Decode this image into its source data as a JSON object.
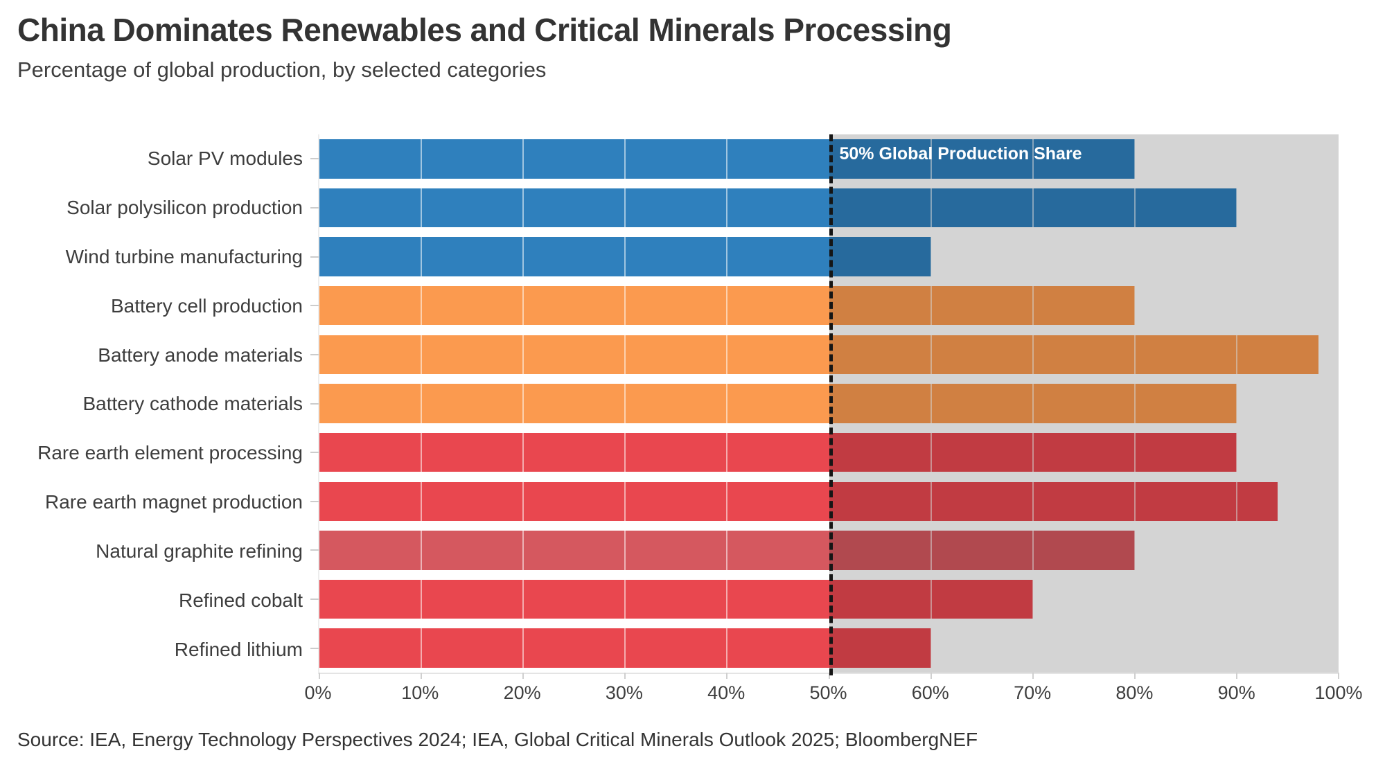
{
  "header": {
    "title": "China Dominates Renewables and Critical Minerals Processing",
    "subtitle": "Percentage of global production, by selected categories"
  },
  "footer": {
    "source": "Source: IEA, Energy Technology Perspectives 2024; IEA, Global Critical Minerals Outlook 2025; BloombergNEF"
  },
  "colors": {
    "blue": "#2f80bd",
    "orange": "#fb9a4f",
    "red": "#e9474f",
    "red_muted": "#d5585f",
    "over50_band": "#d4d4d4",
    "reference_line": "#151515",
    "reference_label_text": "#ffffff",
    "grid_line": "rgba(255,255,255,0.55)"
  },
  "chart_data": {
    "type": "bar",
    "orientation": "horizontal",
    "title": "China Dominates Renewables and Critical Minerals Processing",
    "subtitle": "Percentage of global production, by selected categories",
    "xlabel": "",
    "ylabel": "",
    "xlim": [
      0,
      100
    ],
    "grid": "vertical",
    "legend": "none",
    "categories": [
      "Solar PV modules",
      "Solar polysilicon production",
      "Wind turbine manufacturing",
      "Battery cell production",
      "Battery anode materials",
      "Battery cathode materials",
      "Rare earth element processing",
      "Rare earth magnet production",
      "Natural graphite refining",
      "Refined cobalt",
      "Refined lithium"
    ],
    "values": [
      80,
      90,
      60,
      80,
      98,
      90,
      90,
      94,
      80,
      70,
      60
    ],
    "bar_colors": [
      "blue",
      "blue",
      "blue",
      "orange",
      "orange",
      "orange",
      "red",
      "red",
      "red_muted",
      "red",
      "red"
    ],
    "x_tick_labels": [
      "0%",
      "10%",
      "20%",
      "30%",
      "40%",
      "50%",
      "60%",
      "70%",
      "80%",
      "90%",
      "100%"
    ],
    "x_tick_values": [
      0,
      10,
      20,
      30,
      40,
      50,
      60,
      70,
      80,
      90,
      100
    ],
    "gridline_values": [
      10,
      20,
      30,
      40,
      60,
      70,
      80,
      90
    ],
    "shaded_region": {
      "from": 50,
      "to": 100
    },
    "reference_line": {
      "x": 50,
      "style": "dashed",
      "label": "50% Global Production Share"
    }
  }
}
